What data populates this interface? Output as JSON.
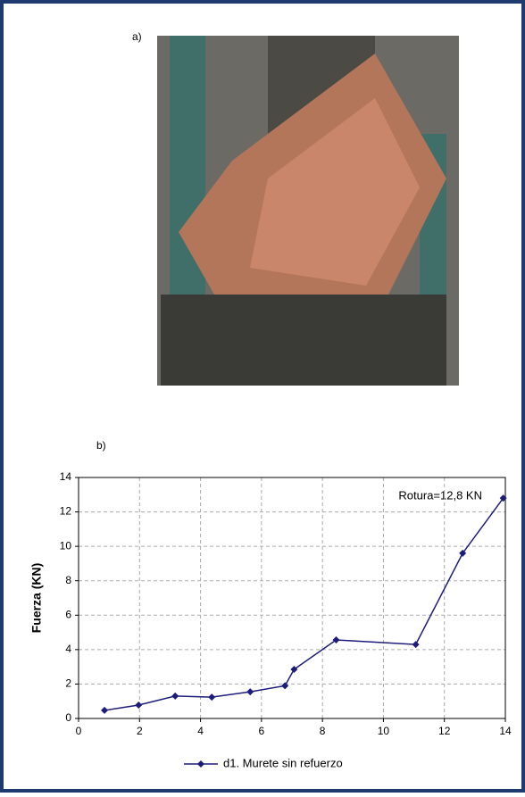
{
  "panel_labels": {
    "a": "a)",
    "b": "b)"
  },
  "chart_data": {
    "type": "line",
    "annotation": "Rotura=12,8 KN",
    "y_label": "Fuerza (KN)",
    "x": [
      0.85,
      1.97,
      3.17,
      4.37,
      5.63,
      6.77,
      7.07,
      8.45,
      11.06,
      12.6,
      13.93
    ],
    "series": [
      {
        "name": "d1. Murete sin refuerzo",
        "color": "#1c1c7a",
        "values": [
          0.47,
          0.78,
          1.3,
          1.24,
          1.55,
          1.9,
          2.85,
          4.56,
          4.3,
          9.6,
          12.8
        ]
      }
    ],
    "xlim": [
      0,
      14
    ],
    "ylim": [
      0,
      14
    ],
    "xticks": [
      0,
      2,
      4,
      6,
      8,
      10,
      12,
      14
    ],
    "yticks": [
      0,
      2,
      4,
      6,
      8,
      10,
      12,
      14
    ],
    "grid": true,
    "legend": "bottom"
  }
}
